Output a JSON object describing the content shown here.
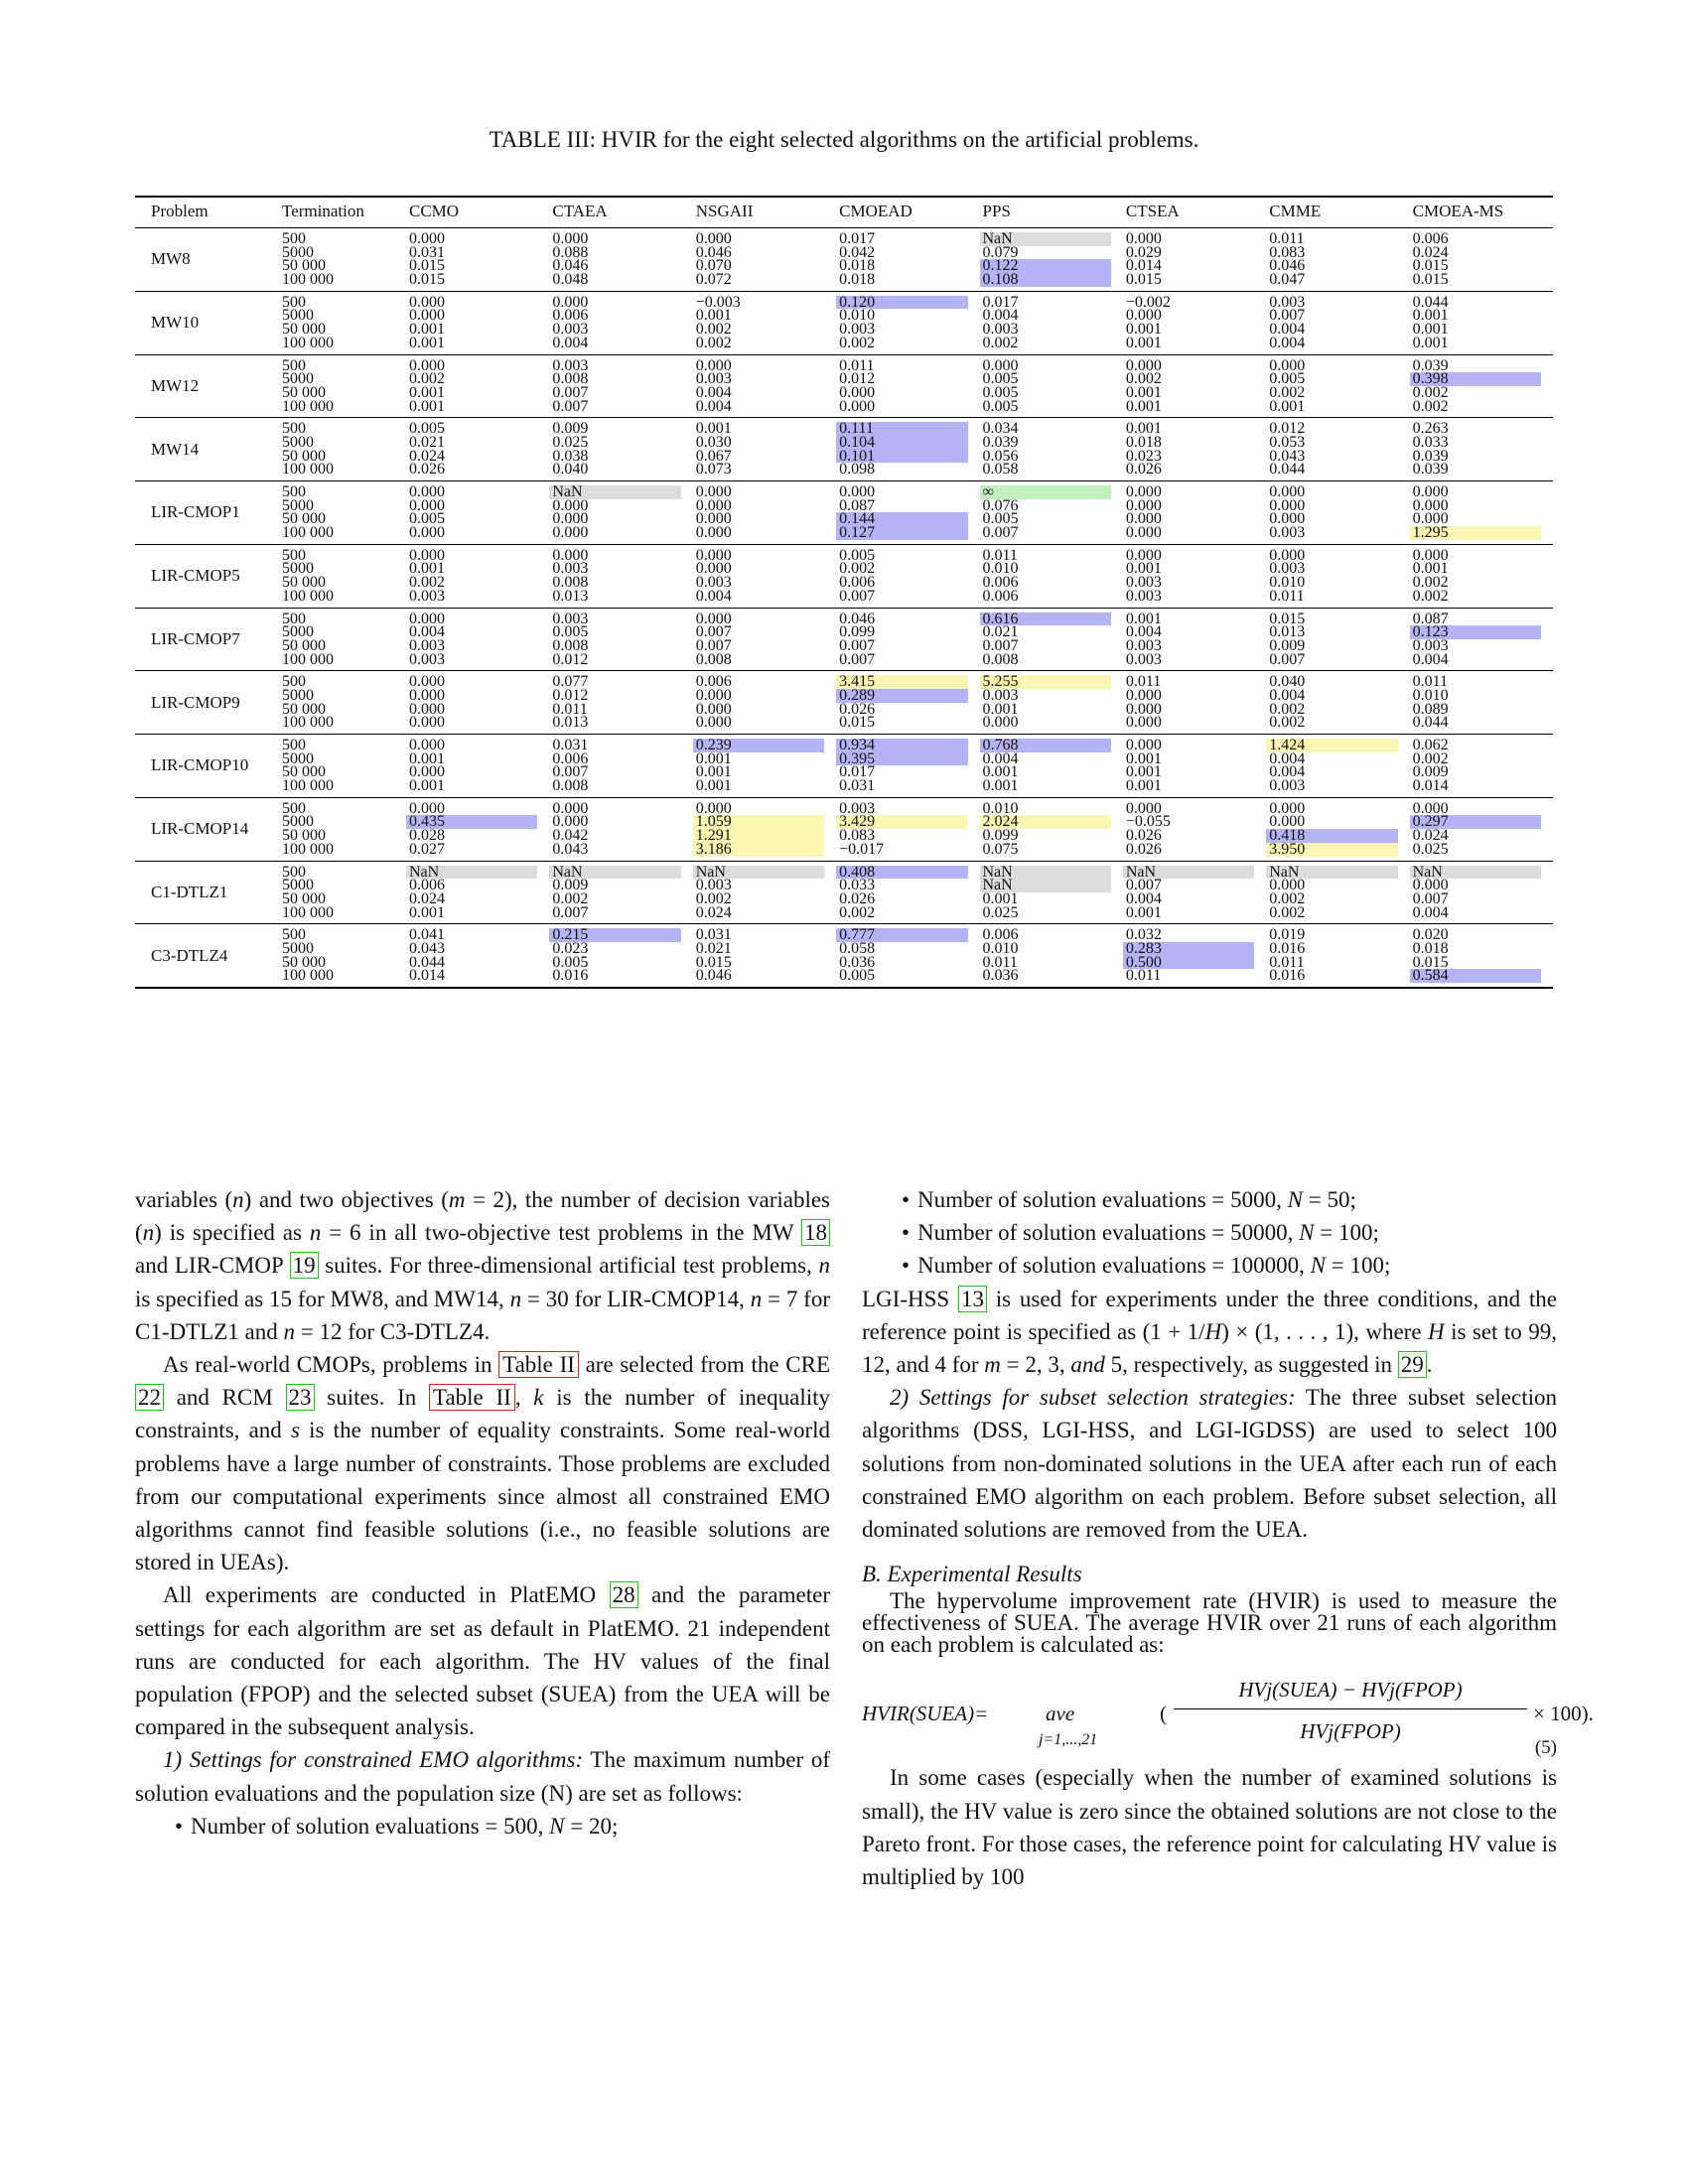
{
  "caption": "TABLE III: HVIR for the eight selected algorithms on the artificial problems.",
  "table": {
    "headers": [
      "Problem",
      "Termination",
      "CCMO",
      "CTAEA",
      "NSGAII",
      "CMOEAD",
      "PPS",
      "CTSEA",
      "CMME",
      "CMOEA-MS"
    ],
    "terminations": [
      "500",
      "5000",
      "50 000",
      "100 000"
    ],
    "rows": [
      {
        "problem": "MW8",
        "cols": [
          [
            "0.000",
            "0.031",
            "0.015",
            "0.015"
          ],
          [
            "0.000",
            "0.088",
            "0.046",
            "0.048"
          ],
          [
            "0.000",
            "0.046",
            "0.070",
            "0.072"
          ],
          [
            "0.017",
            "0.042",
            "0.018",
            "0.018"
          ],
          [
            "NaN",
            "0.079",
            "0.122",
            "0.108"
          ],
          [
            "0.000",
            "0.029",
            "0.014",
            "0.015"
          ],
          [
            "0.011",
            "0.083",
            "0.046",
            "0.047"
          ],
          [
            "0.006",
            "0.024",
            "0.015",
            "0.015"
          ]
        ],
        "hl": {
          "4": [
            "gray",
            "",
            "blue",
            "blue"
          ]
        }
      },
      {
        "problem": "MW10",
        "cols": [
          [
            "0.000",
            "0.000",
            "0.001",
            "0.001"
          ],
          [
            "0.000",
            "0.006",
            "0.003",
            "0.004"
          ],
          [
            "−0.003",
            "0.001",
            "0.002",
            "0.002"
          ],
          [
            "0.120",
            "0.010",
            "0.003",
            "0.002"
          ],
          [
            "0.017",
            "0.004",
            "0.003",
            "0.002"
          ],
          [
            "−0.002",
            "0.000",
            "0.001",
            "0.001"
          ],
          [
            "0.003",
            "0.007",
            "0.004",
            "0.004"
          ],
          [
            "0.044",
            "0.001",
            "0.001",
            "0.001"
          ]
        ],
        "hl": {
          "3": [
            "blue",
            "",
            "",
            ""
          ]
        }
      },
      {
        "problem": "MW12",
        "cols": [
          [
            "0.000",
            "0.002",
            "0.001",
            "0.001"
          ],
          [
            "0.003",
            "0.008",
            "0.007",
            "0.007"
          ],
          [
            "0.000",
            "0.003",
            "0.004",
            "0.004"
          ],
          [
            "0.011",
            "0.012",
            "0.000",
            "0.000"
          ],
          [
            "0.000",
            "0.005",
            "0.005",
            "0.005"
          ],
          [
            "0.000",
            "0.002",
            "0.001",
            "0.001"
          ],
          [
            "0.000",
            "0.005",
            "0.002",
            "0.001"
          ],
          [
            "0.039",
            "0.398",
            "0.002",
            "0.002"
          ]
        ],
        "hl": {
          "7": [
            "",
            "blue",
            "",
            ""
          ]
        }
      },
      {
        "problem": "MW14",
        "cols": [
          [
            "0.005",
            "0.021",
            "0.024",
            "0.026"
          ],
          [
            "0.009",
            "0.025",
            "0.038",
            "0.040"
          ],
          [
            "0.001",
            "0.030",
            "0.067",
            "0.073"
          ],
          [
            "0.111",
            "0.104",
            "0.101",
            "0.098"
          ],
          [
            "0.034",
            "0.039",
            "0.056",
            "0.058"
          ],
          [
            "0.001",
            "0.018",
            "0.023",
            "0.026"
          ],
          [
            "0.012",
            "0.053",
            "0.043",
            "0.044"
          ],
          [
            "0.263",
            "0.033",
            "0.039",
            "0.039"
          ]
        ],
        "hl": {
          "3": [
            "blue",
            "blue",
            "blue",
            ""
          ]
        }
      },
      {
        "problem": "LIR-CMOP1",
        "cols": [
          [
            "0.000",
            "0.000",
            "0.005",
            "0.000"
          ],
          [
            "NaN",
            "0.000",
            "0.000",
            "0.000"
          ],
          [
            "0.000",
            "0.000",
            "0.000",
            "0.000"
          ],
          [
            "0.000",
            "0.087",
            "0.144",
            "0.127"
          ],
          [
            "∞",
            "0.076",
            "0.005",
            "0.007"
          ],
          [
            "0.000",
            "0.000",
            "0.000",
            "0.000"
          ],
          [
            "0.000",
            "0.000",
            "0.000",
            "0.003"
          ],
          [
            "0.000",
            "0.000",
            "0.000",
            "1.295"
          ]
        ],
        "hl": {
          "1": [
            "gray",
            "",
            "",
            ""
          ],
          "3": [
            "",
            "",
            "blue",
            "blue"
          ],
          "4": [
            "green",
            "",
            "",
            ""
          ],
          "7": [
            "",
            "",
            "",
            "yellow"
          ]
        }
      },
      {
        "problem": "LIR-CMOP5",
        "cols": [
          [
            "0.000",
            "0.001",
            "0.002",
            "0.003"
          ],
          [
            "0.000",
            "0.003",
            "0.008",
            "0.013"
          ],
          [
            "0.000",
            "0.000",
            "0.003",
            "0.004"
          ],
          [
            "0.005",
            "0.002",
            "0.006",
            "0.007"
          ],
          [
            "0.011",
            "0.010",
            "0.006",
            "0.006"
          ],
          [
            "0.000",
            "0.001",
            "0.003",
            "0.003"
          ],
          [
            "0.000",
            "0.003",
            "0.010",
            "0.011"
          ],
          [
            "0.000",
            "0.001",
            "0.002",
            "0.002"
          ]
        ],
        "hl": {}
      },
      {
        "problem": "LIR-CMOP7",
        "cols": [
          [
            "0.000",
            "0.004",
            "0.003",
            "0.003"
          ],
          [
            "0.003",
            "0.005",
            "0.008",
            "0.012"
          ],
          [
            "0.000",
            "0.007",
            "0.007",
            "0.008"
          ],
          [
            "0.046",
            "0.099",
            "0.007",
            "0.007"
          ],
          [
            "0.616",
            "0.021",
            "0.007",
            "0.008"
          ],
          [
            "0.001",
            "0.004",
            "0.003",
            "0.003"
          ],
          [
            "0.015",
            "0.013",
            "0.009",
            "0.007"
          ],
          [
            "0.087",
            "0.123",
            "0.003",
            "0.004"
          ]
        ],
        "hl": {
          "4": [
            "blue",
            "",
            "",
            ""
          ],
          "7": [
            "",
            "blue",
            "",
            ""
          ]
        }
      },
      {
        "problem": "LIR-CMOP9",
        "cols": [
          [
            "0.000",
            "0.000",
            "0.000",
            "0.000"
          ],
          [
            "0.077",
            "0.012",
            "0.011",
            "0.013"
          ],
          [
            "0.006",
            "0.000",
            "0.000",
            "0.000"
          ],
          [
            "3.415",
            "0.289",
            "0.026",
            "0.015"
          ],
          [
            "5.255",
            "0.003",
            "0.001",
            "0.000"
          ],
          [
            "0.011",
            "0.000",
            "0.000",
            "0.000"
          ],
          [
            "0.040",
            "0.004",
            "0.002",
            "0.002"
          ],
          [
            "0.011",
            "0.010",
            "0.089",
            "0.044"
          ]
        ],
        "hl": {
          "3": [
            "yellow",
            "blue",
            "",
            ""
          ],
          "4": [
            "yellow",
            "",
            "",
            ""
          ]
        }
      },
      {
        "problem": "LIR-CMOP10",
        "cols": [
          [
            "0.000",
            "0.001",
            "0.000",
            "0.001"
          ],
          [
            "0.031",
            "0.006",
            "0.007",
            "0.008"
          ],
          [
            "0.239",
            "0.001",
            "0.001",
            "0.001"
          ],
          [
            "0.934",
            "0.395",
            "0.017",
            "0.031"
          ],
          [
            "0.768",
            "0.004",
            "0.001",
            "0.001"
          ],
          [
            "0.000",
            "0.001",
            "0.001",
            "0.001"
          ],
          [
            "1.424",
            "0.004",
            "0.004",
            "0.003"
          ],
          [
            "0.062",
            "0.002",
            "0.009",
            "0.014"
          ]
        ],
        "hl": {
          "2": [
            "blue",
            "",
            "",
            ""
          ],
          "3": [
            "blue",
            "blue",
            "",
            ""
          ],
          "4": [
            "blue",
            "",
            "",
            ""
          ],
          "6": [
            "yellow",
            "",
            "",
            ""
          ]
        }
      },
      {
        "problem": "LIR-CMOP14",
        "cols": [
          [
            "0.000",
            "0.435",
            "0.028",
            "0.027"
          ],
          [
            "0.000",
            "0.000",
            "0.042",
            "0.043"
          ],
          [
            "0.000",
            "1.059",
            "1.291",
            "3.186"
          ],
          [
            "0.003",
            "3.429",
            "0.083",
            "−0.017"
          ],
          [
            "0.010",
            "2.024",
            "0.099",
            "0.075"
          ],
          [
            "0.000",
            "−0.055",
            "0.026",
            "0.026"
          ],
          [
            "0.000",
            "0.000",
            "0.418",
            "3.950"
          ],
          [
            "0.000",
            "0.297",
            "0.024",
            "0.025"
          ]
        ],
        "hl": {
          "0": [
            "",
            "blue",
            "",
            ""
          ],
          "2": [
            "",
            "yellow",
            "yellow",
            "yellow"
          ],
          "3": [
            "",
            "yellow",
            "",
            ""
          ],
          "4": [
            "",
            "yellow",
            "",
            ""
          ],
          "6": [
            "",
            "",
            "blue",
            "yellow"
          ],
          "7": [
            "",
            "blue",
            "",
            ""
          ]
        }
      },
      {
        "problem": "C1-DTLZ1",
        "cols": [
          [
            "NaN",
            "0.006",
            "0.024",
            "0.001"
          ],
          [
            "NaN",
            "0.009",
            "0.002",
            "0.007"
          ],
          [
            "NaN",
            "0.003",
            "0.002",
            "0.024"
          ],
          [
            "0.408",
            "0.033",
            "0.026",
            "0.002"
          ],
          [
            "NaN",
            "NaN",
            "0.001",
            "0.025"
          ],
          [
            "NaN",
            "0.007",
            "0.004",
            "0.001"
          ],
          [
            "NaN",
            "0.000",
            "0.002",
            "0.002"
          ],
          [
            "NaN",
            "0.000",
            "0.007",
            "0.004"
          ]
        ],
        "hl": {
          "0": [
            "gray",
            "",
            "",
            ""
          ],
          "1": [
            "gray",
            "",
            "",
            ""
          ],
          "2": [
            "gray",
            "",
            "",
            ""
          ],
          "3": [
            "blue",
            "",
            "",
            ""
          ],
          "4": [
            "gray",
            "gray",
            "",
            ""
          ],
          "5": [
            "gray",
            "",
            "",
            ""
          ],
          "6": [
            "gray",
            "",
            "",
            ""
          ],
          "7": [
            "gray",
            "",
            "",
            ""
          ]
        }
      },
      {
        "problem": "C3-DTLZ4",
        "cols": [
          [
            "0.041",
            "0.043",
            "0.044",
            "0.014"
          ],
          [
            "0.215",
            "0.023",
            "0.005",
            "0.016"
          ],
          [
            "0.031",
            "0.021",
            "0.015",
            "0.046"
          ],
          [
            "0.777",
            "0.058",
            "0.036",
            "0.005"
          ],
          [
            "0.006",
            "0.010",
            "0.011",
            "0.036"
          ],
          [
            "0.032",
            "0.283",
            "0.500",
            "0.011"
          ],
          [
            "0.019",
            "0.016",
            "0.011",
            "0.016"
          ],
          [
            "0.020",
            "0.018",
            "0.015",
            "0.584"
          ]
        ],
        "hl": {
          "1": [
            "blue",
            "",
            "",
            ""
          ],
          "3": [
            "blue",
            "",
            "",
            ""
          ],
          "5": [
            "",
            "blue",
            "blue",
            ""
          ],
          "7": [
            "",
            "",
            "",
            "blue"
          ]
        }
      }
    ]
  },
  "left_col": {
    "p1": "variables (n) and two objectives (m = 2), the number of decision variables (n) is specified as n = 6 in all two-objective test problems in the MW [18] and LIR-CMOP [19] suites. For three-dimensional artificial test problems, n is specified as 15 for MW8, and MW14, n = 30 for LIR-CMOP14, n = 7 for C1-DTLZ1 and n = 12 for C3-DTLZ4.",
    "p2": "As real-world CMOPs, problems in Table II are selected from the CRE [22] and RCM [23] suites. In Table II, k is the number of inequality constraints, and s is the number of equality constraints. Some real-world problems have a large number of constraints. Those problems are excluded from our computational experiments since almost all constrained EMO algorithms cannot find feasible solutions (i.e., no feasible solutions are stored in UEAs).",
    "p3": "All experiments are conducted in PlatEMO [28] and the parameter settings for each algorithm are set as default in PlatEMO. 21 independent runs are conducted for each algorithm. The HV values of the final population (FPOP) and the selected subset (SUEA) from the UEA will be compared in the subsequent analysis.",
    "s1_title": "1) Settings for constrained EMO algorithms:",
    "s1_text": " The maximum number of solution evaluations and the population size (N) are set as follows:",
    "b1": "Number of solution evaluations = 500, N = 20;"
  },
  "right_col": {
    "b2": "Number of solution evaluations = 5000, N = 50;",
    "b3": "Number of solution evaluations = 50000, N = 100;",
    "b4": "Number of solution evaluations = 100000, N = 100;",
    "p4": "LGI-HSS [13] is used for experiments under the three conditions, and the reference point is specified as (1 + 1/H) × (1, . . . , 1), where H is set to 99, 12, and 4 for m = 2, 3, and 5, respectively, as suggested in [29].",
    "s2_title": "2) Settings for subset selection strategies:",
    "s2_text": " The three subset selection algorithms (DSS, LGI-HSS, and LGI-IGDSS) are used to select 100 solutions from non-dominated solutions in the UEA after each run of each constrained EMO algorithm on each problem. Before subset selection, all dominated solutions are removed from the UEA.",
    "sec_title": "B. Experimental Results",
    "p5": "The hypervolume improvement rate (HVIR) is used to measure the effectiveness of SUEA. The average HVIR over 21 runs of each algorithm on each problem is calculated as:",
    "f_lhs": "HVIR(SUEA)=",
    "f_ave": "ave",
    "f_sub": "j=1,...,21",
    "f_num": "HVj(SUEA) − HVj(FPOP)",
    "f_den": "HVj(FPOP)",
    "f_tail": "× 100).",
    "f_eqn": "(5)",
    "p6": "In some cases (especially when the number of examined solutions is small), the HV value is zero since the obtained solutions are not close to the Pareto front. For those cases, the reference point for calculating HV value is multiplied by 100"
  }
}
